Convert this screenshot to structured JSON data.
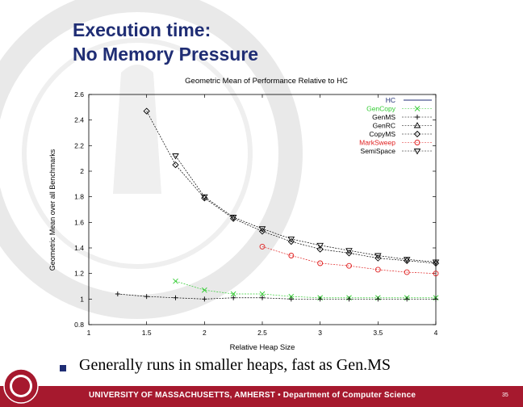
{
  "slide": {
    "title_line1": "Execution time:",
    "title_line2": "No Memory Pressure",
    "bullet": "Generally runs in smaller heaps, fast as Gen.MS",
    "footer": "UNIVERSITY OF MASSACHUSETTS, AMHERST  •  Department of Computer Science",
    "page_number": "35"
  },
  "colors": {
    "title": "#1f2d74",
    "footer_bar": "#a6192e",
    "green": "#33cc33",
    "red": "#e02020",
    "black": "#000000"
  },
  "chart_data": {
    "type": "line",
    "title": "Geometric Mean of Performance Relative to HC",
    "xlabel": "Relative Heap Size",
    "ylabel": "Geometric Mean over all Benchmarks",
    "xlim": [
      1,
      4
    ],
    "ylim": [
      0.8,
      2.6
    ],
    "x_ticks": [
      "1",
      "1.5",
      "2",
      "2.5",
      "3",
      "3.5",
      "4"
    ],
    "y_ticks": [
      "0.8",
      "1",
      "1.2",
      "1.4",
      "1.6",
      "1.8",
      "2",
      "2.2",
      "2.4",
      "2.6"
    ],
    "grid": false,
    "legend_position": "top-right",
    "series": [
      {
        "name": "HC",
        "color": "#1f2d74",
        "marker": "none",
        "x": [],
        "y": []
      },
      {
        "name": "GenCopy",
        "color": "#33cc33",
        "marker": "x",
        "x": [
          1.75,
          2.0,
          2.25,
          2.5,
          2.75,
          3.0,
          3.25,
          3.5,
          3.75,
          4.0
        ],
        "y": [
          1.14,
          1.07,
          1.04,
          1.04,
          1.02,
          1.01,
          1.01,
          1.01,
          1.01,
          1.01
        ]
      },
      {
        "name": "GenMS",
        "color": "#000000",
        "marker": "plus",
        "x": [
          1.25,
          1.5,
          1.75,
          2.0,
          2.25,
          2.5,
          2.75,
          3.0,
          3.25,
          3.5,
          3.75,
          4.0
        ],
        "y": [
          1.04,
          1.02,
          1.01,
          1.0,
          1.01,
          1.01,
          1.0,
          1.0,
          1.0,
          1.0,
          1.0,
          1.0
        ]
      },
      {
        "name": "GenRC",
        "color": "#000000",
        "marker": "triangle",
        "x": [],
        "y": []
      },
      {
        "name": "CopyMS",
        "color": "#000000",
        "marker": "diamond",
        "x": [
          1.5,
          1.75,
          2.0,
          2.25,
          2.5,
          2.75,
          3.0,
          3.25,
          3.5,
          3.75,
          4.0
        ],
        "y": [
          2.47,
          2.05,
          1.79,
          1.63,
          1.53,
          1.45,
          1.39,
          1.36,
          1.32,
          1.3,
          1.28
        ]
      },
      {
        "name": "MarkSweep",
        "color": "#e02020",
        "marker": "circle",
        "x": [
          2.5,
          2.75,
          3.0,
          3.25,
          3.5,
          3.75,
          4.0
        ],
        "y": [
          1.41,
          1.34,
          1.28,
          1.26,
          1.23,
          1.21,
          1.2
        ]
      },
      {
        "name": "SemiSpace",
        "color": "#000000",
        "marker": "triangle-down",
        "x": [
          1.75,
          2.0,
          2.25,
          2.5,
          2.75,
          3.0,
          3.25,
          3.5,
          3.75,
          4.0
        ],
        "y": [
          2.12,
          1.8,
          1.64,
          1.55,
          1.47,
          1.42,
          1.38,
          1.34,
          1.31,
          1.29
        ]
      }
    ]
  }
}
